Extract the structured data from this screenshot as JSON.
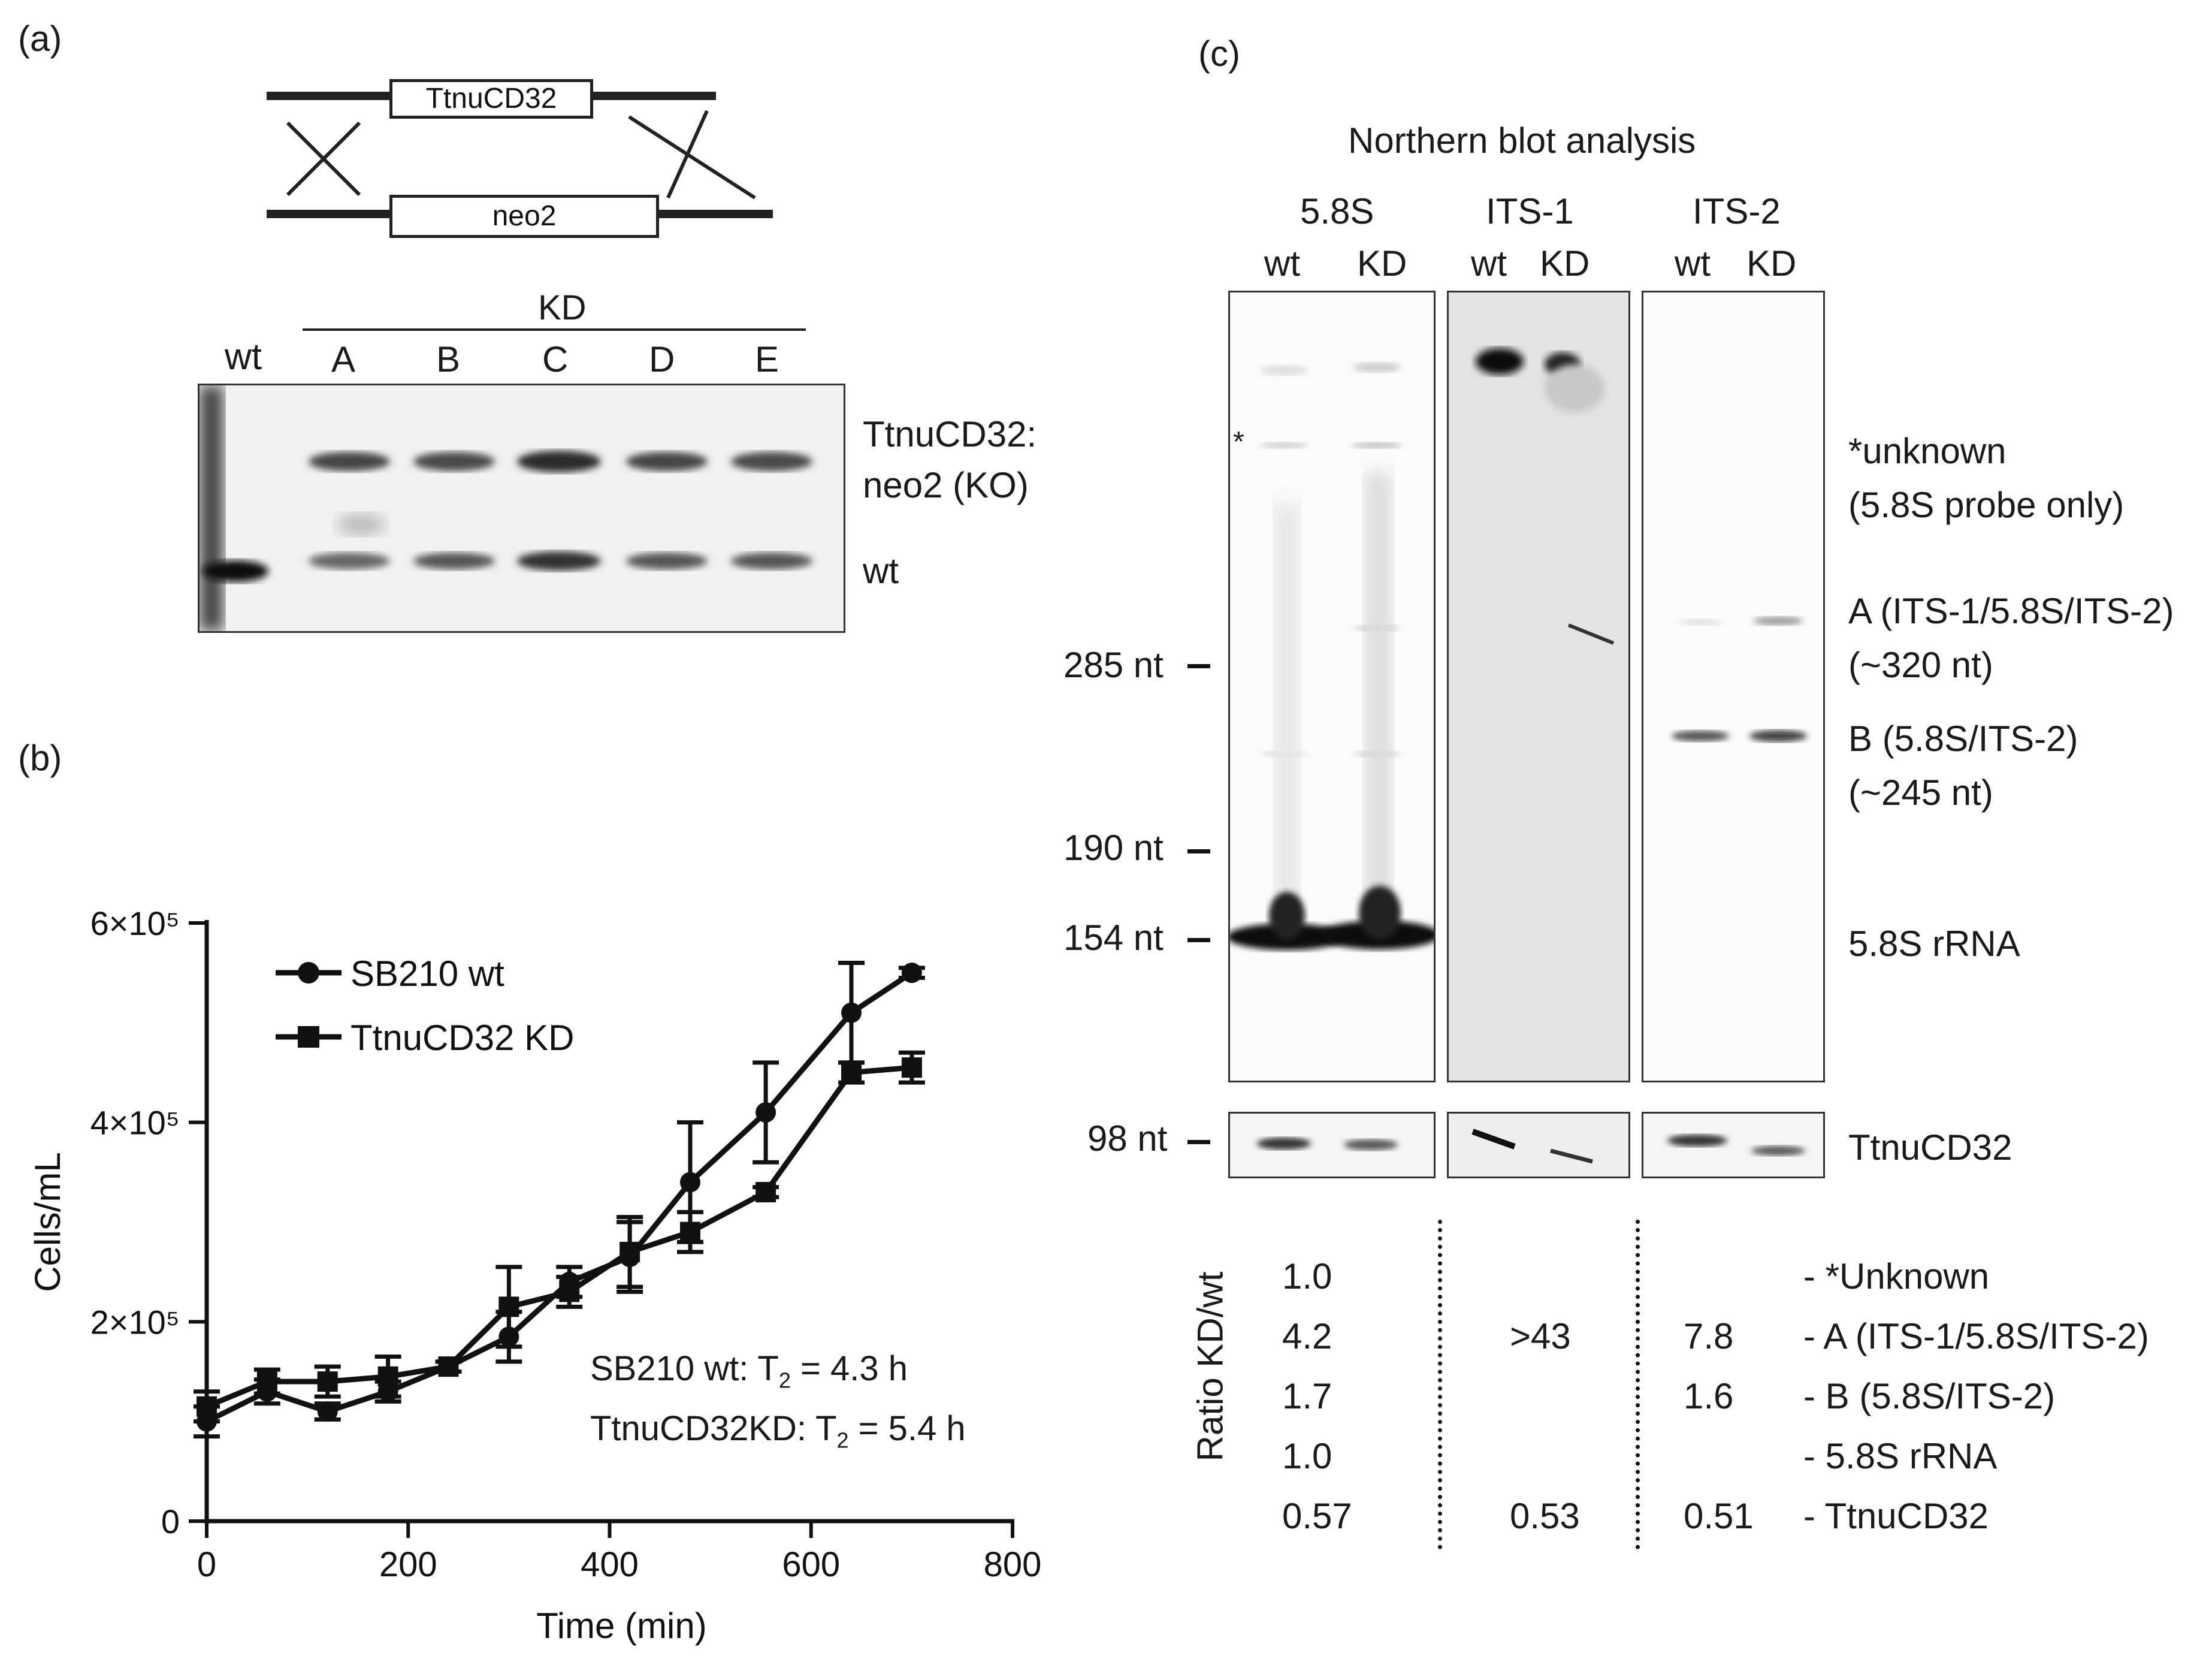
{
  "panel_a": {
    "label": "(a)",
    "construct_top": "TtnuCD32",
    "construct_bottom": "neo2",
    "kd_group_label": "KD",
    "lane_labels": [
      "wt",
      "A",
      "B",
      "C",
      "D",
      "E"
    ],
    "band_upper_label_line1": "TtnuCD32:",
    "band_upper_label_line2": "neo2 (KO)",
    "band_lower_label": "wt"
  },
  "panel_b": {
    "label": "(b)",
    "annotation_wt": "SB210 wt: T",
    "annotation_kd": "TtnuCD32KD: T",
    "subscript": "2",
    "annotation_wt_value": " = 4.3 h",
    "annotation_kd_value": " = 5.4 h"
  },
  "chart_data": {
    "type": "line",
    "title": "",
    "xlabel": "Time (min)",
    "ylabel": "Cells/mL",
    "xlim": [
      0,
      800
    ],
    "ylim": [
      0,
      600000
    ],
    "x_ticks": [
      0,
      200,
      400,
      600,
      800
    ],
    "y_ticks": [
      0,
      200000,
      400000,
      600000
    ],
    "y_tick_labels": [
      "0",
      "2×10⁵",
      "4×10⁵",
      "6×10⁵"
    ],
    "legend_position": "top-left",
    "series": [
      {
        "name": "SB210 wt",
        "marker": "circle",
        "x": [
          0,
          60,
          120,
          180,
          240,
          300,
          360,
          420,
          480,
          555,
          640,
          700
        ],
        "y": [
          100000,
          130000,
          110000,
          130000,
          155000,
          185000,
          240000,
          265000,
          340000,
          410000,
          510000,
          550000
        ],
        "err": [
          15000,
          12000,
          8000,
          10000,
          5000,
          25000,
          15000,
          35000,
          60000,
          50000,
          50000,
          5000
        ]
      },
      {
        "name": "TtnuCD32 KD",
        "marker": "square",
        "x": [
          0,
          60,
          120,
          180,
          240,
          300,
          360,
          420,
          480,
          555,
          640,
          700
        ],
        "y": [
          115000,
          140000,
          140000,
          145000,
          155000,
          215000,
          230000,
          270000,
          290000,
          330000,
          450000,
          455000
        ],
        "err": [
          15000,
          12000,
          15000,
          20000,
          5000,
          40000,
          15000,
          35000,
          20000,
          5000,
          10000,
          15000
        ]
      }
    ]
  },
  "panel_c": {
    "label": "(c)",
    "title": "Northern blot analysis",
    "probes": [
      {
        "name": "5.8S",
        "lanes": [
          "wt",
          "KD"
        ]
      },
      {
        "name": "ITS-1",
        "lanes": [
          "wt",
          "KD"
        ]
      },
      {
        "name": "ITS-2",
        "lanes": [
          "wt",
          "KD"
        ]
      }
    ],
    "size_markers": [
      "285 nt",
      "190 nt",
      "154 nt",
      "98 nt"
    ],
    "asterisk": "*",
    "band_labels": [
      {
        "line1": "*unknown",
        "line2": "(5.8S probe only)"
      },
      {
        "line1": "A (ITS-1/5.8S/ITS-2)",
        "line2": "(~320 nt)"
      },
      {
        "line1": "B (5.8S/ITS-2)",
        "line2": "(~245 nt)"
      },
      {
        "line1": "5.8S rRNA",
        "line2": ""
      },
      {
        "line1": "TtnuCD32",
        "line2": ""
      }
    ],
    "ratio_axis_label": "Ratio KD/wt",
    "ratio_col1": [
      "1.0",
      "4.2",
      "1.7",
      "1.0",
      "0.57"
    ],
    "ratio_col2_a": ">43",
    "ratio_col2_last": "0.53",
    "ratio_col3_a": "7.8",
    "ratio_col3_b": "1.6",
    "ratio_col3_last": "0.51",
    "ratio_rows": [
      "- *Unknown",
      "- A (ITS-1/5.8S/ITS-2)",
      "- B (5.8S/ITS-2)",
      "- 5.8S rRNA",
      "- TtnuCD32"
    ]
  }
}
